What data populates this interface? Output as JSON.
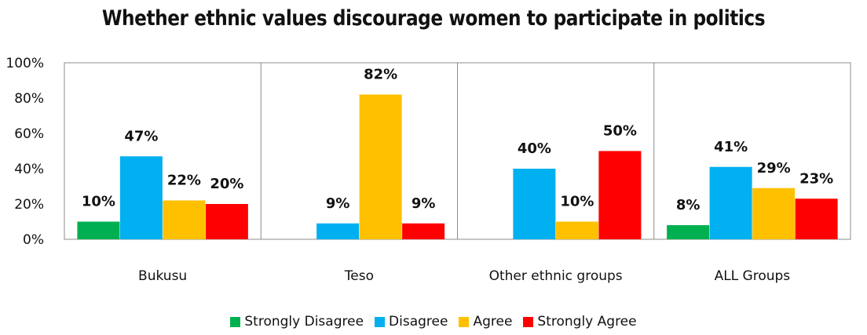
{
  "chart_data": {
    "type": "bar",
    "title": "Whether ethnic values discourage women to participate in politics",
    "categories": [
      "Bukusu",
      "Teso",
      "Other ethnic groups",
      "ALL Groups"
    ],
    "series": [
      {
        "name": "Strongly Disagree",
        "color": "#00B050",
        "values": [
          10,
          null,
          null,
          8
        ],
        "labels": [
          "10%",
          "",
          "",
          "8%"
        ]
      },
      {
        "name": "Disagree",
        "color": "#00B0F0",
        "values": [
          47,
          9,
          40,
          41
        ],
        "labels": [
          "47%",
          "9%",
          "40%",
          "41%"
        ]
      },
      {
        "name": "Agree",
        "color": "#FFC000",
        "values": [
          22,
          82,
          10,
          29
        ],
        "labels": [
          "22%",
          "82%",
          "10%",
          "29%"
        ]
      },
      {
        "name": "Strongly Agree",
        "color": "#FF0000",
        "values": [
          20,
          9,
          50,
          23
        ],
        "labels": [
          "20%",
          "9%",
          "50%",
          "23%"
        ]
      }
    ],
    "ylim": [
      0,
      100
    ],
    "yticks": [
      "0%",
      "20%",
      "40%",
      "60%",
      "80%",
      "100%"
    ],
    "xlabel": "",
    "ylabel": "",
    "grid": true,
    "legend_position": "bottom"
  }
}
